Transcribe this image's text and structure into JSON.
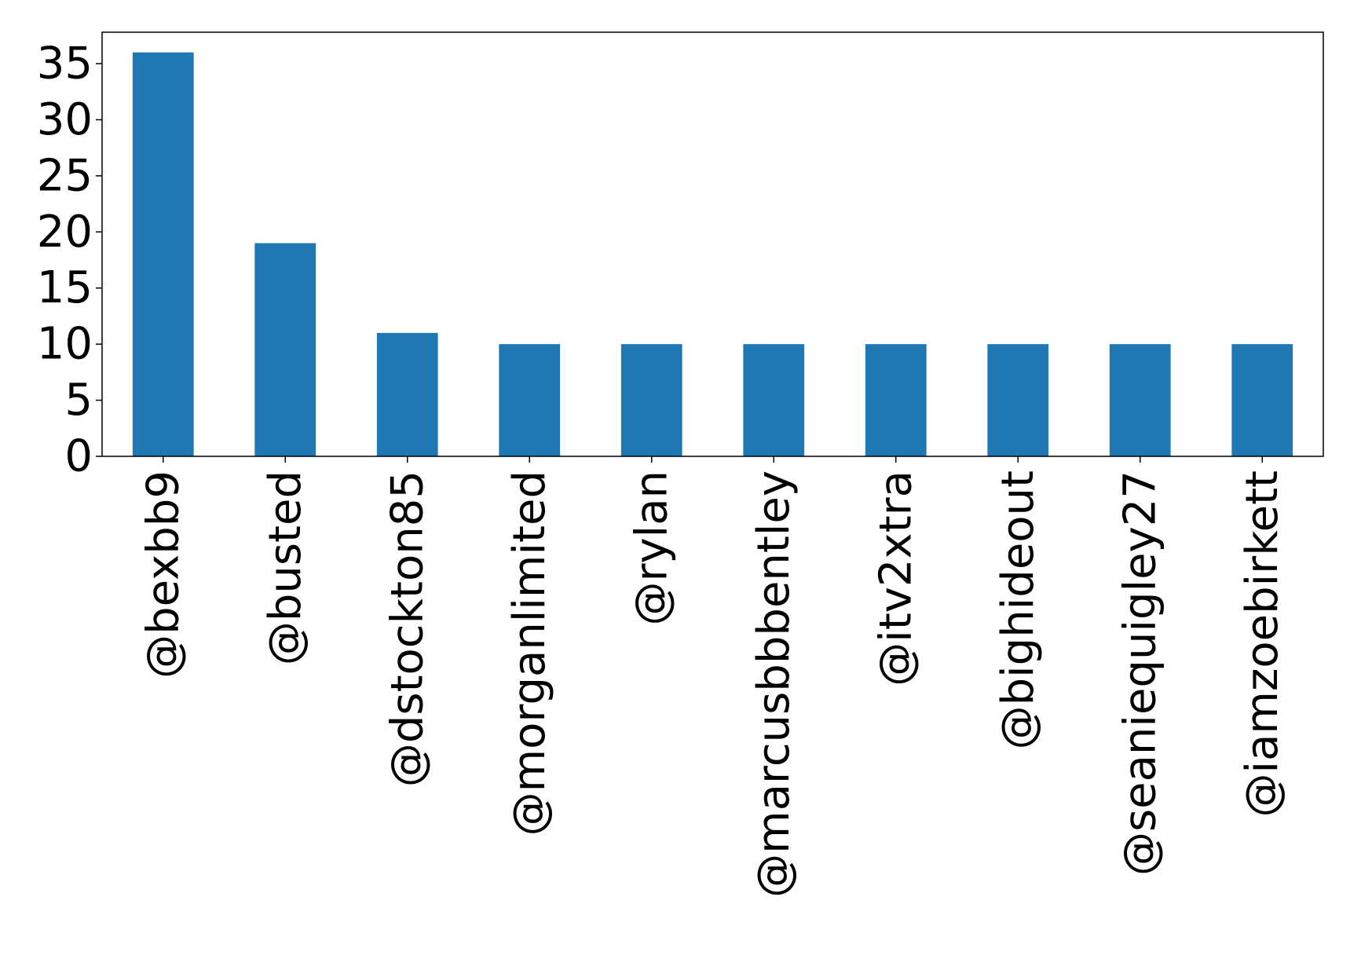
{
  "chart_data": {
    "type": "bar",
    "categories": [
      "@bexbb9",
      "@busted",
      "@dstockton85",
      "@morganlimited",
      "@rylan",
      "@marcusbbbentley",
      "@itv2xtra",
      "@bighideout",
      "@seaniequigley27",
      "@iamzoebirkett"
    ],
    "values": [
      36,
      19,
      11,
      10,
      10,
      10,
      10,
      10,
      10,
      10
    ],
    "yticks": [
      0,
      5,
      10,
      15,
      20,
      25,
      30,
      35
    ],
    "ylim": [
      0,
      37.8
    ],
    "title": "",
    "xlabel": "",
    "ylabel": "",
    "grid": false,
    "bar_color": "#1f77b4"
  }
}
